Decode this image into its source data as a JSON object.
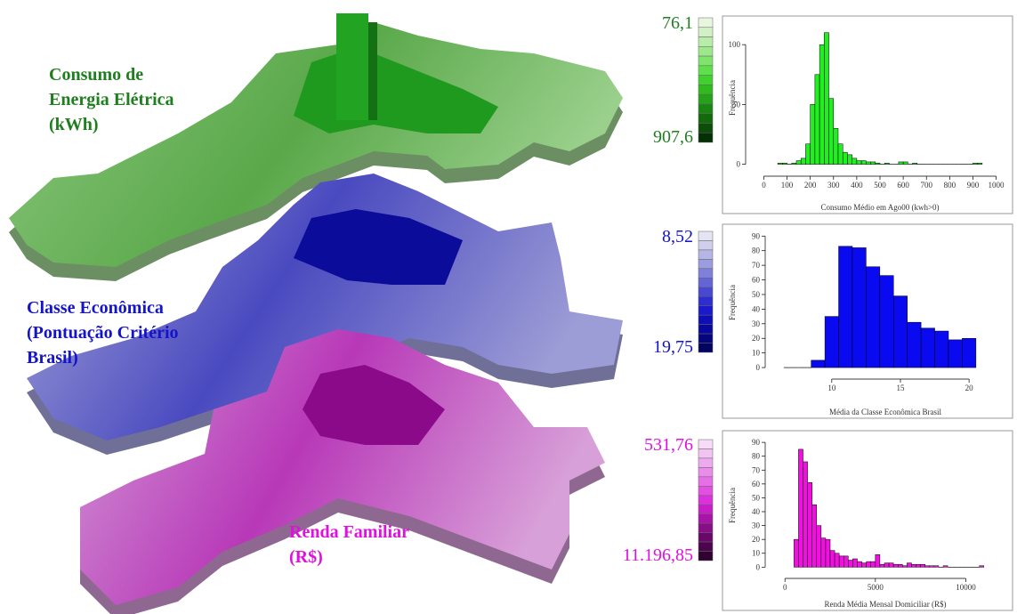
{
  "layers": [
    {
      "label_lines": [
        "Consumo de",
        "Energia Elétrica",
        "(kWh)"
      ],
      "label_color": "#1f7f1f",
      "legend": {
        "top": "76,1",
        "bottom": "907,6",
        "text_color": "#1f7f1f",
        "colors": [
          "#e8f6e0",
          "#d2f0c6",
          "#b8ecaa",
          "#9ee88c",
          "#7fe46c",
          "#5ee04a",
          "#3fd22c",
          "#2fbb1e",
          "#24a218",
          "#1a8612",
          "#126a0d",
          "#0b4e08",
          "#052f04"
        ]
      }
    },
    {
      "label_lines": [
        "Classe Econômica",
        "(Pontuação Critério",
        "Brasil)"
      ],
      "label_color": "#1414c8",
      "legend": {
        "top": "8,52",
        "bottom": "19,75",
        "text_color": "#1414c8",
        "colors": [
          "#e4e4f2",
          "#cfcfec",
          "#b6b6e6",
          "#9c9ce0",
          "#8080da",
          "#6464d6",
          "#4848d2",
          "#2e2ed0",
          "#1a1acc",
          "#0e0eb8",
          "#08089c",
          "#05057e",
          "#030360"
        ]
      }
    },
    {
      "label_lines": [
        "Renda Familiar",
        "(R$)"
      ],
      "label_color": "#e010e0",
      "legend": {
        "top": "531,76",
        "bottom": "11.196,85",
        "text_color": "#e010e0",
        "colors": [
          "#f6dcf6",
          "#f2c4f2",
          "#eeaaee",
          "#ea8cea",
          "#e66ee6",
          "#e250e2",
          "#dc30dc",
          "#c81ec8",
          "#a814a8",
          "#880e88",
          "#6a086a",
          "#4c044c",
          "#300230"
        ]
      }
    }
  ],
  "chart_data": [
    {
      "type": "histogram",
      "x_label": "Consumo Médio em Ago00 (kwh>0)",
      "y_label": "Frequência",
      "color": "#22ee22",
      "bins": [
        60,
        80,
        100,
        120,
        140,
        160,
        180,
        200,
        220,
        240,
        260,
        280,
        300,
        320,
        340,
        360,
        380,
        400,
        420,
        440,
        460,
        480,
        500,
        520,
        540,
        560,
        580,
        600,
        620,
        640,
        660,
        680,
        700,
        720,
        740,
        760,
        780,
        800,
        820,
        840,
        860,
        880,
        900,
        920,
        940
      ],
      "values": [
        1,
        1,
        0,
        1,
        3,
        5,
        17,
        50,
        75,
        100,
        110,
        55,
        30,
        17,
        10,
        8,
        5,
        3,
        3,
        2,
        2,
        1,
        0,
        1,
        0,
        0,
        2,
        2,
        0,
        1,
        0,
        0,
        0,
        0,
        0,
        0,
        0,
        0,
        0,
        0,
        0,
        0,
        1,
        1
      ],
      "xlim": [
        -40,
        1040
      ],
      "ylim": [
        -4,
        115
      ],
      "xticks": [
        0,
        100,
        200,
        300,
        400,
        500,
        600,
        700,
        800,
        900,
        1000
      ],
      "yticks": [
        0,
        50,
        100
      ]
    },
    {
      "type": "histogram",
      "x_label": "Média da Classe Econômica Brasil",
      "y_label": "Frequência",
      "color": "#0a0af0",
      "bins": [
        6.5,
        7.5,
        8.5,
        9.5,
        10.5,
        11.5,
        12.5,
        13.5,
        14.5,
        15.5,
        16.5,
        17.5,
        18.5,
        19.5,
        20.5
      ],
      "values": [
        0,
        0,
        5,
        35,
        83,
        82,
        69,
        63,
        49,
        31,
        27,
        25,
        19,
        20
      ],
      "xlim": [
        5.8,
        22
      ],
      "ylim": [
        -3,
        92
      ],
      "xticks": [
        10,
        15,
        20
      ],
      "yticks": [
        0,
        10,
        20,
        30,
        40,
        50,
        60,
        70,
        80,
        90
      ]
    },
    {
      "type": "histogram",
      "x_label": "Renda Média Mensal Domiciliar (R$)",
      "y_label": "Frequência",
      "color": "#f010e0",
      "bins": [
        500,
        750,
        1000,
        1250,
        1500,
        1750,
        2000,
        2250,
        2500,
        2750,
        3000,
        3250,
        3500,
        3750,
        4000,
        4250,
        4500,
        4750,
        5000,
        5250,
        5500,
        5750,
        6000,
        6250,
        6500,
        6750,
        7000,
        7250,
        7500,
        7750,
        8000,
        8250,
        8500,
        8750,
        9000,
        9250,
        9500,
        9750,
        10000,
        10250,
        10500,
        10750,
        11000
      ],
      "values": [
        20,
        85,
        76,
        61,
        45,
        30,
        21,
        20,
        12,
        10,
        8,
        8,
        5,
        6,
        4,
        3,
        4,
        4,
        9,
        2,
        3,
        3,
        2,
        2,
        1,
        3,
        2,
        2,
        2,
        1,
        1,
        1,
        0,
        1,
        0,
        0,
        0,
        0,
        0,
        0,
        0,
        1
      ],
      "xlim": [
        -600,
        11700
      ],
      "ylim": [
        -3,
        92
      ],
      "xticks": [
        0,
        5000,
        10000
      ],
      "yticks": [
        0,
        10,
        20,
        30,
        40,
        50,
        60,
        70,
        80,
        90
      ]
    }
  ]
}
